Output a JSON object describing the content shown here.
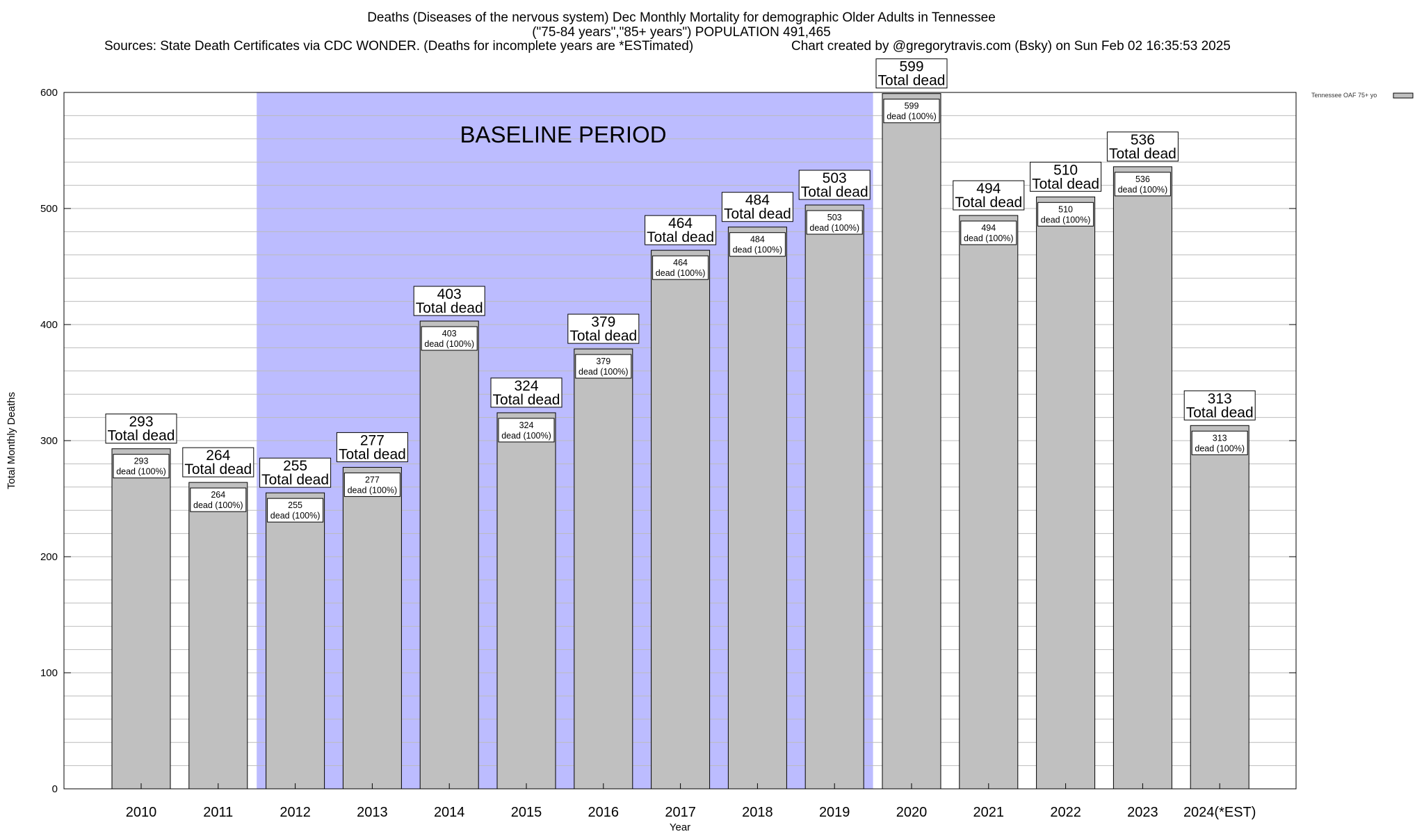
{
  "title": {
    "line1": "Deaths (Diseases of the nervous system) Dec Monthly Mortality for demographic Older Adults in Tennessee",
    "line2": "(\"75-84 years\",\"85+ years\") POPULATION 491,465",
    "line3_left": "Sources: State Death Certificates via CDC WONDER. (Deaths for incomplete years are *ESTimated)",
    "line3_right": "Chart created by @gregorytravis.com (Bsky) on Sun Feb 02 16:35:53 2025"
  },
  "legend": {
    "label": "Tennessee OAF 75+ yo"
  },
  "annotation": {
    "baseline_text": "BASELINE PERIOD",
    "baseline_start": "2012",
    "baseline_end": "2019"
  },
  "colors": {
    "bar": "#c0c0c0",
    "baseline": "#bcbcff",
    "grid": "#bbbbbb"
  },
  "chart_data": {
    "type": "bar",
    "categories": [
      "2010",
      "2011",
      "2012",
      "2013",
      "2014",
      "2015",
      "2016",
      "2017",
      "2018",
      "2019",
      "2020",
      "2021",
      "2022",
      "2023",
      "2024(*EST)"
    ],
    "values": [
      293,
      264,
      255,
      277,
      403,
      324,
      379,
      464,
      484,
      503,
      599,
      494,
      510,
      536,
      313
    ],
    "ylabel": "Total Monthly Deaths",
    "xlabel": "Year",
    "ylim": [
      0,
      600
    ],
    "yticks": [
      0,
      100,
      200,
      300,
      400,
      500,
      600
    ],
    "big_label_suffix": "Total dead",
    "small_label_suffix": "dead (100%)",
    "grid": true,
    "legend_position": "top-right"
  }
}
